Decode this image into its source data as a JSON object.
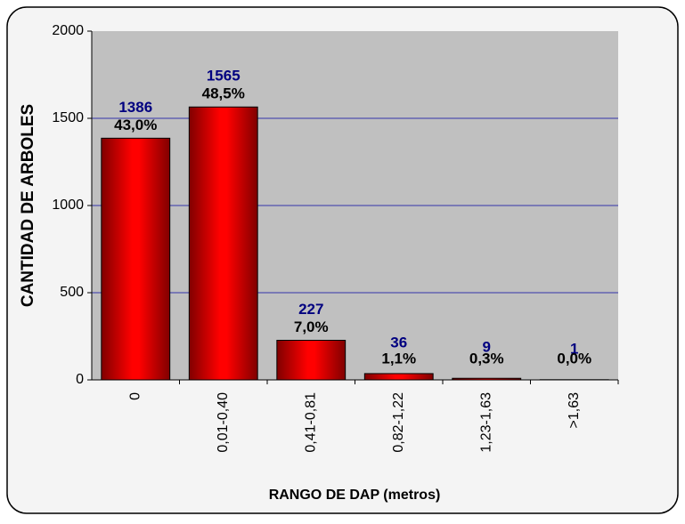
{
  "chart_data": {
    "type": "bar",
    "x_label": "RANGO DE DAP (metros)",
    "y_label": "CANTIDAD DE ARBOLES",
    "categories": [
      "0",
      "0,01-0,40",
      "0,41-0,81",
      "0,82-1,22",
      "1,23-1,63",
      ">1,63"
    ],
    "values": [
      1386,
      1565,
      227,
      36,
      9,
      1
    ],
    "percentages": [
      43.0,
      48.5,
      7.0,
      1.1,
      0.3,
      0.0
    ],
    "percentage_labels": [
      "43,0%",
      "48,5%",
      "7,0%",
      "1,1%",
      "0,3%",
      "0,0%"
    ],
    "color": "#ff0000",
    "ylim": [
      0,
      2000
    ],
    "yticks": [
      0,
      500,
      1000,
      1500,
      2000
    ],
    "grid": true
  }
}
